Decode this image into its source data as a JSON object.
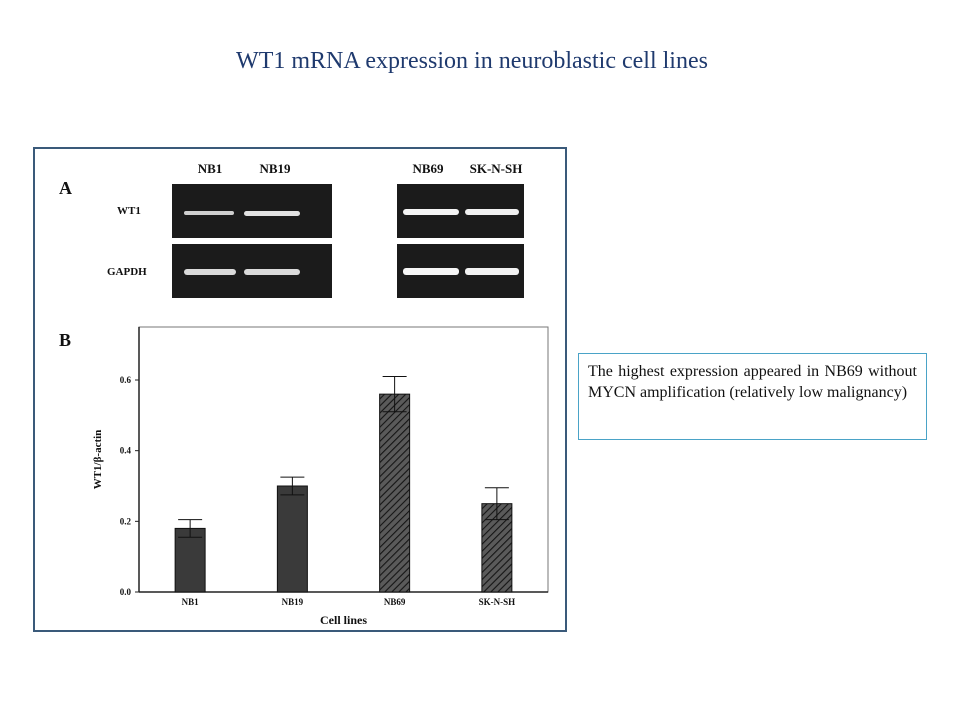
{
  "title": "WT1 mRNA expression in neuroblastic cell lines",
  "note": "The highest expression appeared in NB69 without MYCN amplification (relatively low malignancy)",
  "panel_a": {
    "letter": "A",
    "row_labels": [
      "WT1",
      "GAPDH"
    ],
    "left_lanes": [
      "NB1",
      "NB19"
    ],
    "right_lanes": [
      "NB69",
      "SK-N-SH"
    ]
  },
  "panel_b": {
    "letter": "B"
  },
  "colors": {
    "title": "#1f3a6e",
    "gel": "#1b1b1b",
    "bar": "#3a3a3a",
    "box_border": "#4aa3c7",
    "frame": "#3a5a7a"
  },
  "chart_data": {
    "type": "bar",
    "categories": [
      "NB1",
      "NB19",
      "NB69",
      "SK-N-SH"
    ],
    "values": [
      0.18,
      0.3,
      0.56,
      0.25
    ],
    "errors": [
      0.025,
      0.025,
      0.05,
      0.045
    ],
    "patterns": [
      "solid",
      "solid",
      "hatched",
      "hatched"
    ],
    "xlabel": "Cell lines",
    "ylabel": "WT1/β-actin",
    "yticks": [
      "0.0",
      "0.2",
      "0.4",
      "0.6"
    ],
    "ylim": [
      0,
      0.75
    ],
    "grid": false
  }
}
